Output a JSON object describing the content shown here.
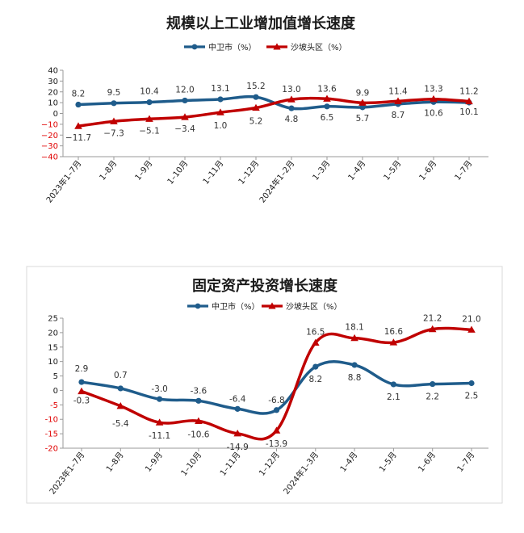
{
  "chart_data": [
    {
      "type": "line",
      "title": "规模以上工业增加值增长速度",
      "categories": [
        "2023年1–7月",
        "1–8月",
        "1–9月",
        "1–10月",
        "1–11月",
        "1–12月",
        "2024年1–2月",
        "1–3月",
        "1–4月",
        "1–5月",
        "1–6月",
        "1–7月"
      ],
      "series": [
        {
          "name": "中卫市（%）",
          "color": "#1f5c8b",
          "marker": "circle",
          "values": [
            8.2,
            9.5,
            10.4,
            12.0,
            13.1,
            15.2,
            4.8,
            6.5,
            5.7,
            8.7,
            10.6,
            10.1
          ],
          "labels": [
            "8.2",
            "9.5",
            "10.4",
            "12.0",
            "13.1",
            "15.2",
            "4.8",
            "6.5",
            "5.7",
            "8.7",
            "10.6",
            "10.1"
          ]
        },
        {
          "name": "沙坡头区（%）",
          "color": "#c00000",
          "marker": "triangle",
          "values": [
            -11.7,
            -7.3,
            -5.1,
            -3.4,
            1.0,
            5.2,
            13.0,
            13.6,
            9.9,
            11.4,
            13.3,
            11.2
          ],
          "labels": [
            "−11.7",
            "−7.3",
            "−5.1",
            "−3.4",
            "1.0",
            "5.2",
            "13.0",
            "13.6",
            "9.9",
            "11.4",
            "13.3",
            "11.2"
          ]
        }
      ],
      "yticks": [
        40,
        30,
        20,
        10,
        0,
        -10,
        -20,
        -30,
        -40
      ],
      "ytick_labels": [
        "40",
        "30",
        "20",
        "10",
        "0",
        "−10",
        "−20",
        "−30",
        "−40"
      ],
      "ylim": [
        -40,
        40
      ],
      "negative_tick_color": "#e00000",
      "grid": false,
      "legend": "top-center"
    },
    {
      "type": "line",
      "title": "固定资产投资增长速度",
      "categories": [
        "2023年1–7月",
        "1–8月",
        "1–9月",
        "1–10月",
        "1–11月",
        "1–12月",
        "2024年1–3月",
        "1–4月",
        "1–5月",
        "1–6月",
        "1–7月"
      ],
      "series": [
        {
          "name": "中卫市（%）",
          "color": "#1f5c8b",
          "marker": "circle",
          "values": [
            2.9,
            0.7,
            -3.0,
            -3.6,
            -6.4,
            -6.8,
            8.2,
            8.8,
            2.1,
            2.2,
            2.5
          ],
          "labels": [
            "2.9",
            "0.7",
            "-3.0",
            "-3.6",
            "-6.4",
            "-6.8",
            "8.2",
            "8.8",
            "2.1",
            "2.2",
            "2.5"
          ]
        },
        {
          "name": "沙坡头区（%）",
          "color": "#c00000",
          "marker": "triangle",
          "values": [
            -0.3,
            -5.4,
            -11.1,
            -10.6,
            -14.9,
            -13.9,
            16.5,
            18.1,
            16.6,
            21.2,
            21.0
          ],
          "labels": [
            "-0.3",
            "-5.4",
            "-11.1",
            "-10.6",
            "-14.9",
            "-13.9",
            "16.5",
            "18.1",
            "16.6",
            "21.2",
            "21.0"
          ]
        }
      ],
      "yticks": [
        25,
        20,
        15,
        10,
        5,
        0,
        -5,
        -10,
        -15,
        -20
      ],
      "ytick_labels": [
        "25",
        "20",
        "15",
        "10",
        "5",
        "0",
        "-5",
        "-10",
        "-15",
        "-20"
      ],
      "ylim": [
        -20,
        25
      ],
      "negative_tick_color": "#e00000",
      "grid": false,
      "legend": "top-right"
    }
  ]
}
